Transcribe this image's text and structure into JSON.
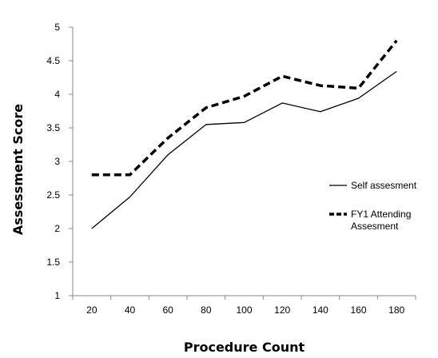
{
  "chart_data": {
    "type": "line",
    "title": "",
    "xlabel": "Procedure Count",
    "ylabel": "Assessment Score",
    "categories": [
      "20",
      "40",
      "60",
      "80",
      "100",
      "120",
      "140",
      "160",
      "180"
    ],
    "ylim": [
      1,
      5
    ],
    "yticks": [
      "1",
      "1.5",
      "2",
      "2.5",
      "3",
      "3.5",
      "4",
      "4.5",
      "5"
    ],
    "grid": false,
    "legend_position": "right",
    "series": [
      {
        "name": "Self assesment",
        "style": "solid",
        "color": "#000000",
        "values": [
          2.0,
          2.47,
          3.1,
          3.55,
          3.58,
          3.87,
          3.74,
          3.94,
          4.34
        ]
      },
      {
        "name": "FY1 Attending Assesment",
        "name_lines": [
          "FY1 Attending",
          "Assesment"
        ],
        "style": "dashed",
        "color": "#000000",
        "values": [
          2.8,
          2.8,
          3.35,
          3.8,
          3.97,
          4.27,
          4.13,
          4.09,
          4.8
        ]
      }
    ]
  }
}
